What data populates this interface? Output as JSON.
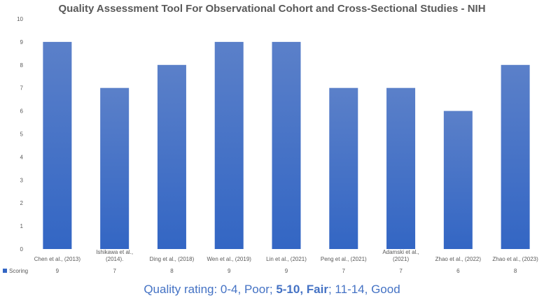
{
  "chart_data": {
    "type": "bar",
    "title": "Quality Assessment Tool For Observational Cohort and Cross-Sectional Studies - NIH",
    "categories": [
      "Chen et al., (2013)",
      "Ishikawa et al., (2014).",
      "Ding et al., (2018)",
      "Wen et al., (2019)",
      "Lin et al., (2021)",
      "Peng et al., (2021)",
      "Adamski et al., (2021)",
      "Zhao et al., (2022)",
      "Zhao et al., (2023)"
    ],
    "category_lines": [
      [
        "Chen et al., (2013)"
      ],
      [
        "Ishikawa et al.,",
        "(2014)."
      ],
      [
        "Ding et al., (2018)"
      ],
      [
        "Wen et al., (2019)"
      ],
      [
        "Lin et al., (2021)"
      ],
      [
        "Peng et al., (2021)"
      ],
      [
        "Adamski et al.,",
        "(2021)"
      ],
      [
        "Zhao et al., (2022)"
      ],
      [
        "Zhao et al., (2023)"
      ]
    ],
    "series": [
      {
        "name": "Scoring",
        "values": [
          9,
          7,
          8,
          9,
          9,
          7,
          7,
          6,
          8
        ]
      }
    ],
    "y_ticks": [
      0,
      1,
      2,
      3,
      4,
      5,
      6,
      7,
      8,
      9,
      10
    ],
    "ylim": [
      0,
      10
    ],
    "xlabel": "",
    "ylabel": "",
    "legend": "data-table-bottom",
    "colors": {
      "bar_top": "#5b80c9",
      "bar_bottom": "#3366c4",
      "text": "#595959",
      "caption": "#4472c4"
    }
  },
  "caption": {
    "part1": "Quality rating: 0-4, Poor; ",
    "part2": "5-10, Fair",
    "part3": "; 11-14, Good"
  }
}
